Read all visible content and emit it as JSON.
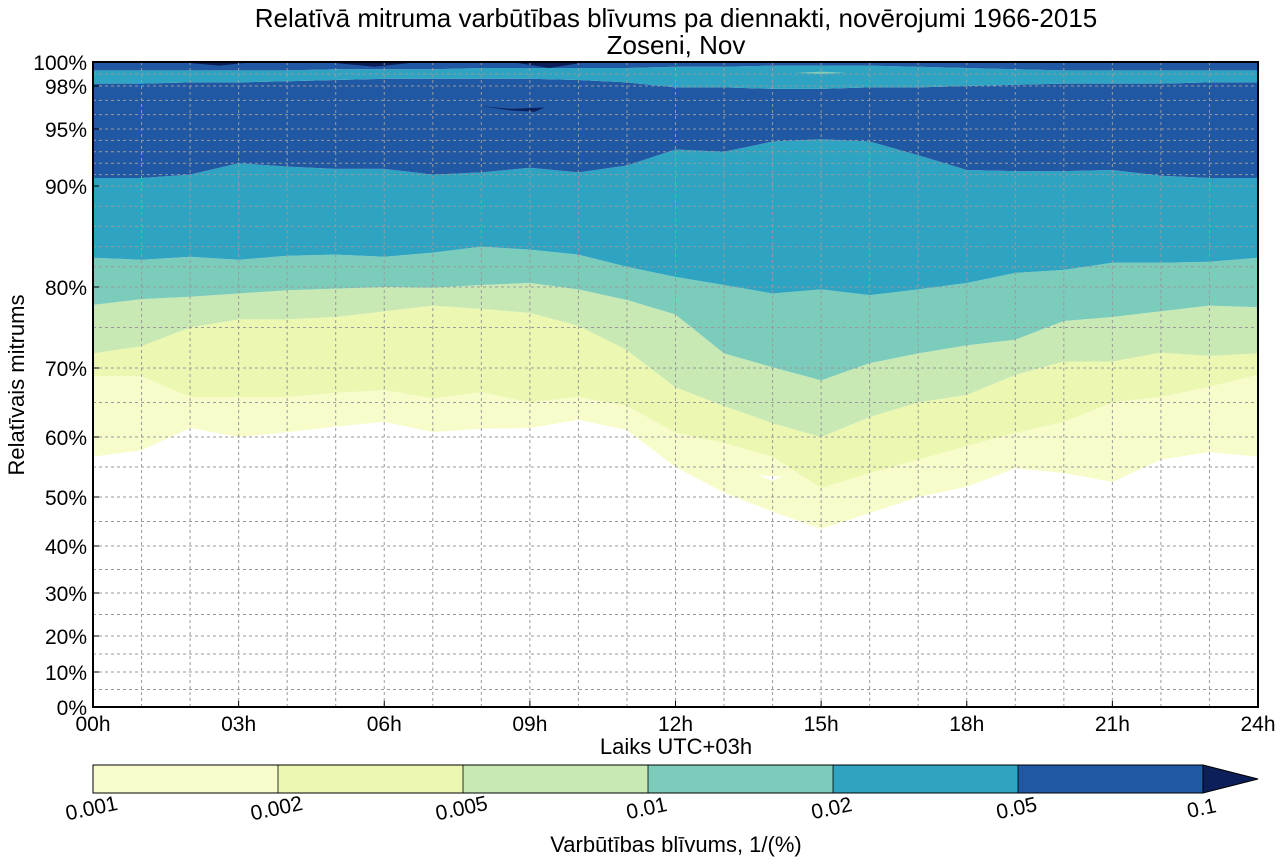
{
  "chart_data": {
    "type": "contour",
    "title": "Relatīvā mitruma varbūtības blīvums pa diennakti, novērojumi 1966-2015",
    "subtitle": "Zoseni, Nov",
    "xlabel": "Laiks UTC+03h",
    "ylabel": "Relatīvais mitrums",
    "xlim": [
      0,
      24
    ],
    "ylim": [
      0,
      100
    ],
    "grid": true,
    "x_ticks": [
      {
        "value": 0,
        "label": "00h"
      },
      {
        "value": 3,
        "label": "03h"
      },
      {
        "value": 6,
        "label": "06h"
      },
      {
        "value": 9,
        "label": "09h"
      },
      {
        "value": 12,
        "label": "12h"
      },
      {
        "value": 15,
        "label": "15h"
      },
      {
        "value": 18,
        "label": "18h"
      },
      {
        "value": 21,
        "label": "21h"
      },
      {
        "value": 24,
        "label": "24h"
      }
    ],
    "y_ticks": [
      {
        "value": 0,
        "label": "0%"
      },
      {
        "value": 10,
        "label": "10%"
      },
      {
        "value": 20,
        "label": "20%"
      },
      {
        "value": 30,
        "label": "30%"
      },
      {
        "value": 40,
        "label": "40%"
      },
      {
        "value": 50,
        "label": "50%"
      },
      {
        "value": 60,
        "label": "60%"
      },
      {
        "value": 70,
        "label": "70%"
      },
      {
        "value": 80,
        "label": "80%"
      },
      {
        "value": 90,
        "label": "90%"
      },
      {
        "value": 95,
        "label": "95%"
      },
      {
        "value": 98,
        "label": "98%"
      },
      {
        "value": 100,
        "label": "100%"
      }
    ],
    "hours": [
      0,
      1,
      2,
      3,
      4,
      5,
      6,
      7,
      8,
      9,
      10,
      11,
      12,
      13,
      14,
      15,
      16,
      17,
      18,
      19,
      20,
      21,
      22,
      23,
      24
    ],
    "boundaries_rh": {
      "b1": [
        56.7,
        57.8,
        61.3,
        60.0,
        60.7,
        61.5,
        62.2,
        60.7,
        61.2,
        61.3,
        62.5,
        61.0,
        55.0,
        50.7,
        47.0,
        43.5,
        46.7,
        50.0,
        51.7,
        54.8,
        54.0,
        52.5,
        56.2,
        57.5,
        56.7
      ],
      "b2": [
        68.8,
        68.8,
        65.8,
        65.8,
        65.8,
        66.4,
        66.8,
        65.6,
        66.5,
        65.0,
        65.8,
        64.5,
        60.6,
        59.0,
        56.7,
        51.5,
        54.0,
        56.2,
        58.5,
        60.6,
        62.2,
        65.0,
        65.8,
        67.3,
        69.0
      ],
      "b3": [
        71.8,
        72.7,
        75.0,
        76.0,
        76.0,
        76.3,
        77.0,
        77.7,
        77.3,
        76.8,
        75.2,
        72.2,
        67.2,
        64.5,
        62.0,
        60.0,
        62.9,
        65.0,
        66.1,
        69.0,
        70.8,
        70.8,
        71.9,
        71.5,
        71.8
      ],
      "b4": [
        77.8,
        78.5,
        78.8,
        79.2,
        79.6,
        79.8,
        80.0,
        79.9,
        80.2,
        80.4,
        79.7,
        78.4,
        76.6,
        71.8,
        70.1,
        68.2,
        70.6,
        71.8,
        72.8,
        73.5,
        75.8,
        76.3,
        77.0,
        77.7,
        77.5
      ],
      "b5": [
        82.9,
        82.7,
        83.0,
        82.7,
        83.1,
        83.2,
        83.0,
        83.4,
        84.0,
        83.7,
        83.2,
        82.0,
        81.0,
        80.2,
        79.2,
        79.7,
        79.0,
        79.7,
        80.4,
        81.4,
        81.7,
        82.4,
        82.4,
        82.5,
        82.9
      ],
      "b6": [
        90.7,
        90.7,
        91.0,
        92.0,
        91.7,
        91.5,
        91.5,
        91.0,
        91.2,
        91.6,
        91.2,
        91.8,
        93.2,
        93.0,
        93.9,
        94.1,
        93.9,
        92.7,
        91.4,
        91.3,
        91.3,
        91.4,
        90.9,
        90.7,
        90.7
      ],
      "b7": [
        98.2,
        98.2,
        98.3,
        98.3,
        98.4,
        98.5,
        98.6,
        98.6,
        98.6,
        98.6,
        98.5,
        98.3,
        97.9,
        97.9,
        97.8,
        97.8,
        97.9,
        97.9,
        98.0,
        98.1,
        98.2,
        98.2,
        98.2,
        98.3,
        98.3
      ],
      "b8": [
        99.3,
        99.3,
        99.3,
        99.3,
        99.3,
        99.4,
        99.4,
        99.4,
        99.5,
        99.5,
        99.5,
        99.5,
        99.6,
        99.6,
        99.7,
        99.7,
        99.7,
        99.6,
        99.5,
        99.4,
        99.3,
        99.3,
        99.3,
        99.3,
        99.3
      ],
      "top": [
        100,
        100,
        100,
        100,
        100,
        100,
        100,
        100,
        100,
        100,
        100,
        100,
        100,
        100,
        100,
        100,
        100,
        100,
        100,
        100,
        100,
        100,
        100,
        100,
        100
      ]
    },
    "bands": [
      {
        "range": "0.001-0.002",
        "lower": "b1",
        "upper": "b2",
        "color": "#f8fccb"
      },
      {
        "range": "0.002-0.005",
        "lower": "b2",
        "upper": "b3",
        "color": "#ecf7b1"
      },
      {
        "range": "0.005-0.01",
        "lower": "b3",
        "upper": "b4",
        "color": "#c9e9b4"
      },
      {
        "range": "0.01-0.02",
        "lower": "b4",
        "upper": "b5",
        "color": "#7bccbb"
      },
      {
        "range": "0.02-0.05",
        "lower": "b5",
        "upper": "b6",
        "color": "#2ea3c2"
      },
      {
        "range": "0.05-0.1",
        "lower": "b6",
        "upper": "b7",
        "color": "#2158a4"
      },
      {
        "range": "0.02-0.05",
        "lower": "b7",
        "upper": "b8",
        "color": "#2ea3c2"
      },
      {
        "range": "0.05-0.1",
        "lower": "b8",
        "upper": "top",
        "color": "#2158a4"
      }
    ],
    "extra_regions": [
      {
        "range": ">0.1",
        "color": "#0c1f5a",
        "points": [
          [
            8.0,
            96.6
          ],
          [
            8.6,
            96.4
          ],
          [
            9.3,
            96.5
          ],
          [
            9.1,
            96.2
          ],
          [
            8.6,
            96.3
          ]
        ]
      },
      {
        "range": ">0.1",
        "color": "#0c1f5a",
        "points": [
          [
            1.9,
            99.95
          ],
          [
            2.6,
            99.7
          ],
          [
            3.2,
            99.95
          ]
        ]
      },
      {
        "range": ">0.1",
        "color": "#0c1f5a",
        "points": [
          [
            4.9,
            99.95
          ],
          [
            5.8,
            99.6
          ],
          [
            6.6,
            99.95
          ]
        ]
      },
      {
        "range": ">0.1",
        "color": "#0c1f5a",
        "points": [
          [
            8.7,
            99.95
          ],
          [
            9.4,
            99.5
          ],
          [
            10.1,
            99.95
          ]
        ]
      },
      {
        "range": "0.01-0.02",
        "color": "#7bccbb",
        "points": [
          [
            14.5,
            99.1
          ],
          [
            15.0,
            99.2
          ],
          [
            15.5,
            99.1
          ],
          [
            15.0,
            99.0
          ]
        ]
      },
      {
        "range": "<0.001",
        "color": "#ffffff",
        "points": [
          [
            13.7,
            53.6
          ],
          [
            14.2,
            53.4
          ],
          [
            14.0,
            52.7
          ]
        ]
      }
    ],
    "colorbar": {
      "label": "Varbūtības blīvums, 1/(%)",
      "levels": [
        "0.001",
        "0.002",
        "0.005",
        "0.01",
        "0.02",
        "0.05",
        "0.1"
      ],
      "colors": [
        "#f8fccb",
        "#ecf7b1",
        "#c9e9b4",
        "#7bccbb",
        "#2ea3c2",
        "#2158a4"
      ],
      "extend_color": "#0c1f5a",
      "extend": "max"
    }
  }
}
